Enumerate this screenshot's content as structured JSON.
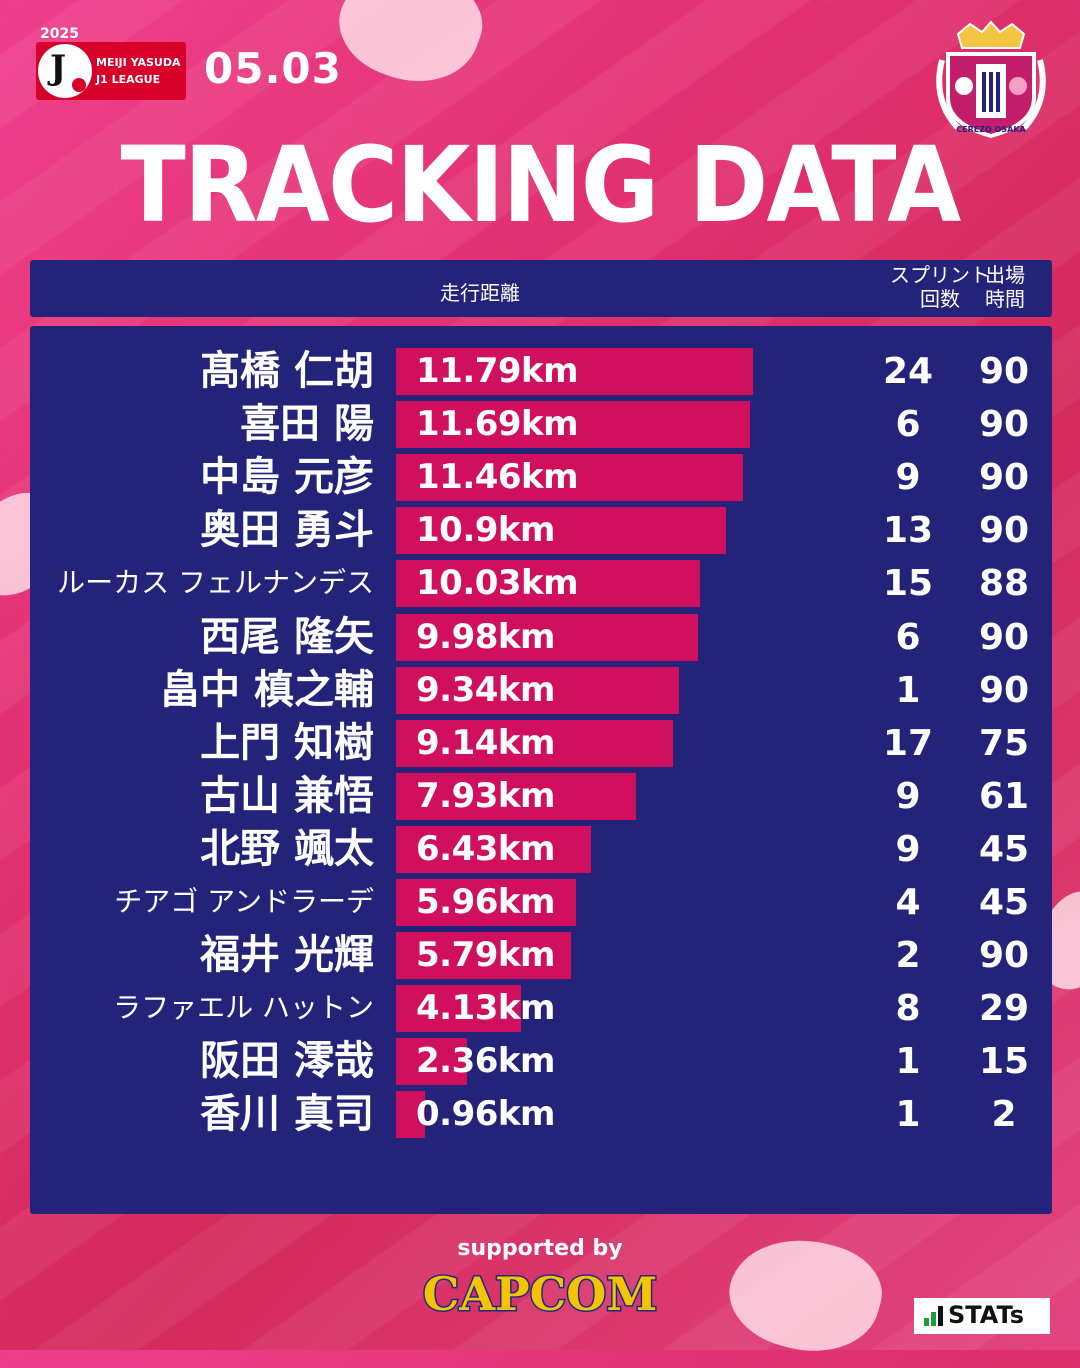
{
  "header": {
    "year": "2025",
    "league_line1": "MEIJI YASUDA",
    "league_line2": "J1 LEAGUE",
    "date": "05.03",
    "title": "TRACKING DATA",
    "crest_text": "CEREZO OSAKA"
  },
  "columns": {
    "distance": "走行距離",
    "sprints_line1": "スプリント",
    "sprints_line2": "回数",
    "minutes_line1": "出場",
    "minutes_line2": "時間"
  },
  "chart_data": {
    "type": "bar",
    "orientation": "horizontal",
    "unit": "km",
    "xlim": [
      0,
      11.79
    ],
    "categories": [
      "髙橋 仁胡",
      "喜田 陽",
      "中島 元彦",
      "奥田 勇斗",
      "ルーカス フェルナンデス",
      "西尾 隆矢",
      "畠中 槙之輔",
      "上門 知樹",
      "古山 兼悟",
      "北野 颯太",
      "チアゴ アンドラーデ",
      "福井 光輝",
      "ラファエル ハットン",
      "阪田 澪哉",
      "香川 真司"
    ],
    "values": [
      11.79,
      11.69,
      11.46,
      10.9,
      10.03,
      9.98,
      9.34,
      9.14,
      7.93,
      6.43,
      5.96,
      5.79,
      4.13,
      2.36,
      0.96
    ],
    "value_labels": [
      "11.79km",
      "11.69km",
      "11.46km",
      "10.9km",
      "10.03km",
      "9.98km",
      "9.34km",
      "9.14km",
      "7.93km",
      "6.43km",
      "5.96km",
      "5.79km",
      "4.13km",
      "2.36km",
      "0.96km"
    ],
    "sprints": [
      24,
      6,
      9,
      13,
      15,
      6,
      1,
      17,
      9,
      9,
      4,
      2,
      8,
      1,
      1
    ],
    "minutes": [
      90,
      90,
      90,
      90,
      88,
      90,
      90,
      75,
      61,
      45,
      45,
      90,
      29,
      15,
      2
    ]
  },
  "footer": {
    "supported_by": "supported by",
    "sponsor": "CAPCOM",
    "stats_brand": "STATs"
  },
  "colors": {
    "background": "#e1306f",
    "panel": "#23237a",
    "bar": "#d0105f",
    "text": "#ffffff"
  }
}
